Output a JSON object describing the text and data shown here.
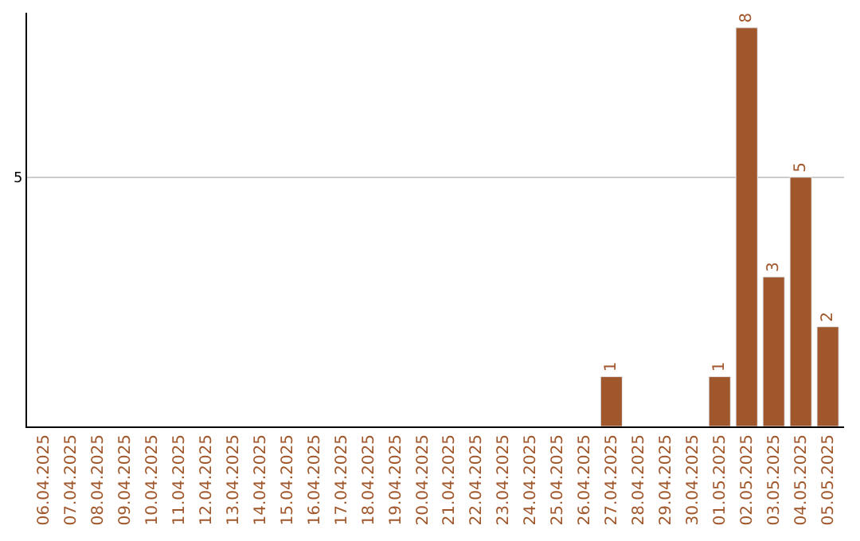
{
  "chart_data": {
    "type": "bar",
    "categories": [
      "06.04.2025",
      "07.04.2025",
      "08.04.2025",
      "09.04.2025",
      "10.04.2025",
      "11.04.2025",
      "12.04.2025",
      "13.04.2025",
      "14.04.2025",
      "15.04.2025",
      "16.04.2025",
      "17.04.2025",
      "18.04.2025",
      "19.04.2025",
      "20.04.2025",
      "21.04.2025",
      "22.04.2025",
      "23.04.2025",
      "24.04.2025",
      "25.04.2025",
      "26.04.2025",
      "27.04.2025",
      "28.04.2025",
      "29.04.2025",
      "30.04.2025",
      "01.05.2025",
      "02.05.2025",
      "03.05.2025",
      "04.05.2025",
      "05.05.2025"
    ],
    "values": [
      null,
      null,
      null,
      null,
      null,
      null,
      null,
      null,
      null,
      null,
      null,
      null,
      null,
      null,
      null,
      null,
      null,
      null,
      null,
      null,
      null,
      1,
      null,
      null,
      null,
      1,
      8,
      3,
      5,
      2
    ],
    "data_labels": true,
    "color": "#a0572b",
    "ylim": [
      0,
      8.3
    ],
    "yticks": [
      5
    ],
    "grid": "y",
    "legend": false
  }
}
